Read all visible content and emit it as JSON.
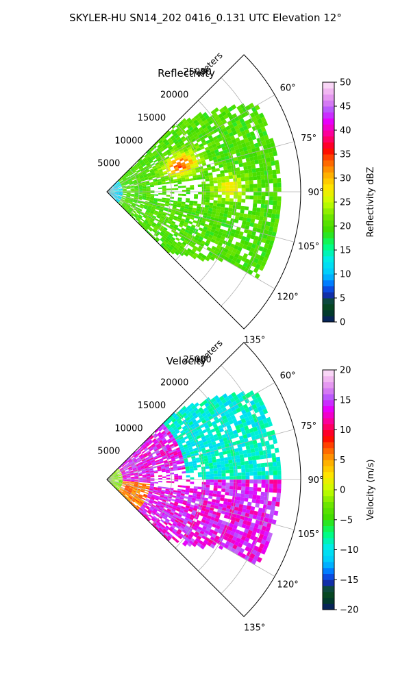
{
  "figure": {
    "suptitle": "SKYLER-HU  SN14_202  0416_0.131 UTC Elevation 12°"
  },
  "chart_data": [
    {
      "type": "heatmap",
      "projection": "polar-sector",
      "title": "Reflectivity",
      "range_label": "Meters",
      "range_ticks": [
        5000,
        10000,
        15000,
        20000,
        25000
      ],
      "range_tick_labels": [
        "5000",
        "10000",
        "15000",
        "20000",
        "25000"
      ],
      "range_max": 30000,
      "azimuth_range_deg": [
        45,
        135
      ],
      "azimuth_ticks": [
        60,
        75,
        90,
        105,
        120,
        135
      ],
      "azimuth_tick_labels": [
        "60°",
        "75°",
        "90°",
        "105°",
        "120°",
        "135°"
      ],
      "grid": true,
      "colorbar": {
        "label": "Reflectivity dBZ",
        "range": [
          0,
          50
        ],
        "ticks": [
          0,
          5,
          10,
          15,
          20,
          25,
          30,
          35,
          40,
          45,
          50
        ],
        "tick_labels": [
          "0",
          "5",
          "10",
          "15",
          "20",
          "25",
          "30",
          "35",
          "40",
          "45",
          "50"
        ]
      },
      "colors": {
        "low": "#0a1a6e",
        "mid_low": "#00e6e6",
        "mid": "#33dd00",
        "mid_high": "#ffe600",
        "high": "#ff1a1a",
        "very_high": "#b44dff",
        "top": "#fde6f8"
      }
    },
    {
      "type": "heatmap",
      "projection": "polar-sector",
      "title": "Velocity",
      "range_label": "Meters",
      "range_ticks": [
        5000,
        10000,
        15000,
        20000,
        25000
      ],
      "range_tick_labels": [
        "5000",
        "10000",
        "15000",
        "20000",
        "25000"
      ],
      "range_max": 30000,
      "azimuth_range_deg": [
        45,
        135
      ],
      "azimuth_ticks": [
        60,
        75,
        90,
        105,
        120,
        135
      ],
      "azimuth_tick_labels": [
        "60°",
        "75°",
        "90°",
        "105°",
        "120°",
        "135°"
      ],
      "grid": true,
      "colorbar": {
        "label": "Velocity (m/s)",
        "range": [
          -20,
          20
        ],
        "ticks": [
          -20,
          -15,
          -10,
          -5,
          0,
          5,
          10,
          15,
          20
        ],
        "tick_labels": [
          "−20",
          "−15",
          "−10",
          "−5",
          "0",
          "5",
          "10",
          "15",
          "20"
        ]
      },
      "colors": {
        "low": "#0a1a6e",
        "mid_low": "#00e6e6",
        "mid": "#33dd00",
        "mid_high": "#ffe600",
        "high": "#ff1a1a",
        "very_high": "#b44dff",
        "top": "#fde6f8"
      }
    }
  ]
}
